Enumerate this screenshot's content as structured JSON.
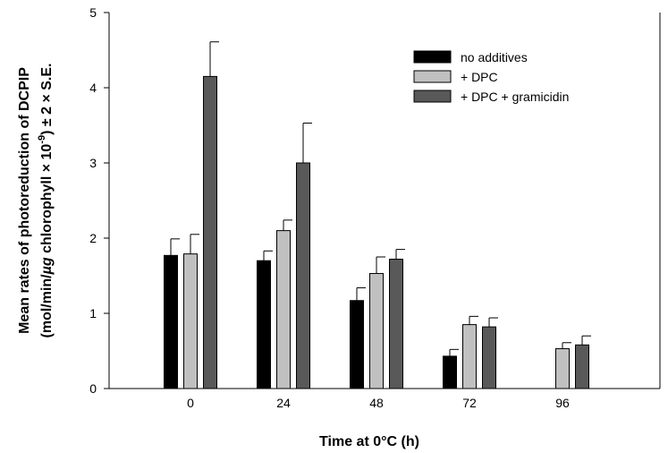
{
  "chart_data": {
    "type": "bar",
    "categories": [
      "0",
      "24",
      "48",
      "72",
      "96"
    ],
    "xlabel": "Time at 0°C (h)",
    "ylabel_line1": "Mean rates of photoreduction  of DCPIP",
    "ylabel_line2_parts": [
      "(mol/min/",
      "µg",
      " chlorophyll × 10",
      "-9",
      ") ± 2 × S.E."
    ],
    "ylim": [
      0,
      5
    ],
    "yticks": [
      "0",
      "1",
      "2",
      "3",
      "4",
      "5"
    ],
    "grid": false,
    "legend_position": "top-right",
    "series": [
      {
        "name": "no additives",
        "color": "#000000",
        "values": [
          1.77,
          1.7,
          1.17,
          0.43,
          null
        ],
        "errors": [
          0.22,
          0.13,
          0.17,
          0.09,
          null
        ]
      },
      {
        "name": "+ DPC",
        "color": "#c0c0c0",
        "values": [
          1.79,
          2.1,
          1.53,
          0.85,
          0.53
        ],
        "errors": [
          0.26,
          0.14,
          0.22,
          0.11,
          0.08
        ]
      },
      {
        "name": "+ DPC + gramicidin",
        "color": "#595959",
        "values": [
          4.15,
          3.0,
          1.72,
          0.82,
          0.58
        ],
        "errors": [
          0.46,
          0.53,
          0.13,
          0.12,
          0.12
        ]
      }
    ]
  }
}
